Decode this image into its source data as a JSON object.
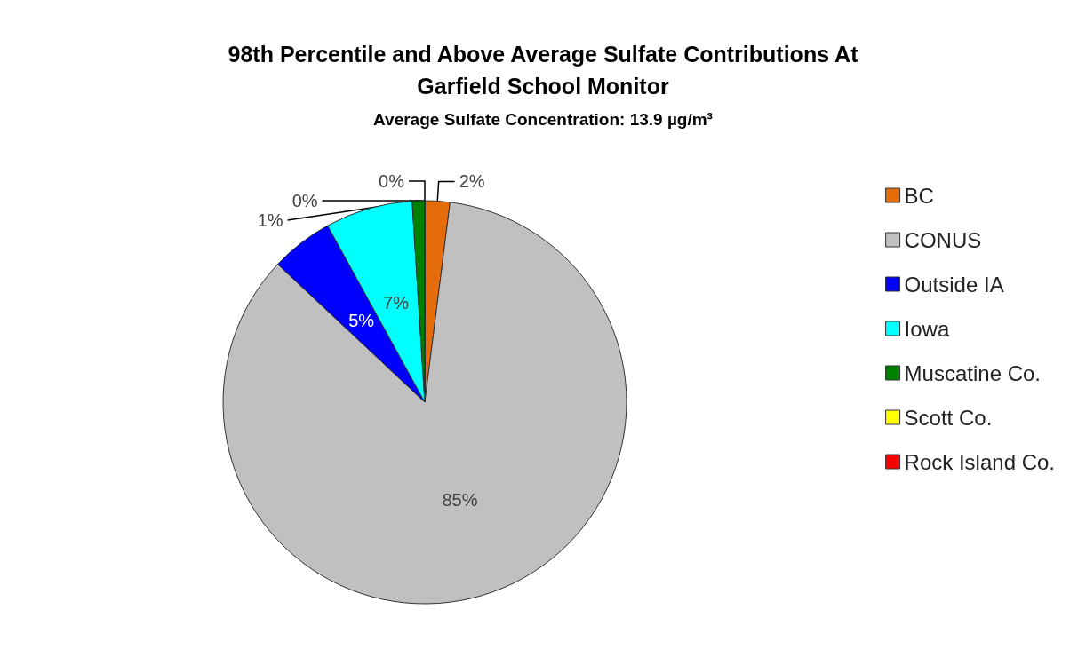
{
  "chart_data": {
    "type": "pie",
    "title": "98th Percentile and Above Average Sulfate Contributions At Garfield School Monitor",
    "subtitle": "Average Sulfate Concentration: 13.9 µg/m³",
    "categories": [
      "BC",
      "CONUS",
      "Outside IA",
      "Iowa",
      "Muscatine Co.",
      "Scott Co.",
      "Rock Island Co."
    ],
    "values": [
      2,
      85,
      5,
      7,
      1,
      0,
      0
    ],
    "value_labels": [
      "2%",
      "85%",
      "5%",
      "7%",
      "1%",
      "0%",
      "0%"
    ],
    "colors": [
      "#e46c0a",
      "#c0c0c0",
      "#0000ff",
      "#00ffff",
      "#008000",
      "#ffff00",
      "#ff0000"
    ],
    "legend": "right"
  }
}
